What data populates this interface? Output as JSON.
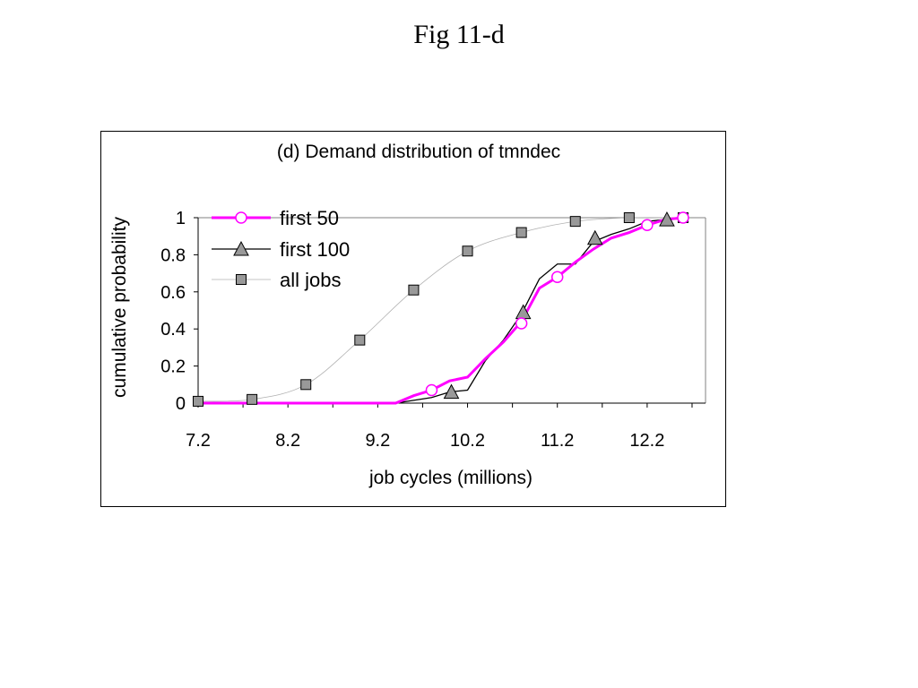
{
  "slide": {
    "title": "Fig 11-d"
  },
  "chart_data": {
    "type": "line",
    "title": "(d) Demand distribution of tmndec",
    "xlabel": "job cycles (millions)",
    "ylabel": "cumulative probability",
    "x_ticks": [
      "7.2",
      "8.2",
      "9.2",
      "10.2",
      "11.2",
      "12.2"
    ],
    "y_ticks": [
      "0",
      "0.2",
      "0.4",
      "0.6",
      "0.8",
      "1"
    ],
    "xlim": [
      7.2,
      12.85
    ],
    "ylim": [
      0,
      1
    ],
    "legend_position": "top-left",
    "series": [
      {
        "name": "first 50",
        "color": "#ff00ff",
        "marker": "circle",
        "line": [
          [
            7.2,
            0.0
          ],
          [
            9.4,
            0.0
          ],
          [
            9.6,
            0.04
          ],
          [
            9.8,
            0.07
          ],
          [
            10.0,
            0.12
          ],
          [
            10.2,
            0.14
          ],
          [
            10.4,
            0.24
          ],
          [
            10.6,
            0.33
          ],
          [
            10.8,
            0.44
          ],
          [
            11.0,
            0.62
          ],
          [
            11.2,
            0.68
          ],
          [
            11.4,
            0.76
          ],
          [
            11.6,
            0.83
          ],
          [
            11.8,
            0.89
          ],
          [
            12.0,
            0.92
          ],
          [
            12.2,
            0.96
          ],
          [
            12.4,
            0.99
          ],
          [
            12.6,
            1.0
          ]
        ],
        "markers": [
          [
            9.8,
            0.07
          ],
          [
            10.8,
            0.43
          ],
          [
            11.2,
            0.68
          ],
          [
            12.2,
            0.96
          ],
          [
            12.6,
            1.0
          ]
        ]
      },
      {
        "name": "first 100",
        "color": "#000000",
        "marker": "triangle",
        "line": [
          [
            7.2,
            0.0
          ],
          [
            9.4,
            0.0
          ],
          [
            9.8,
            0.03
          ],
          [
            10.0,
            0.06
          ],
          [
            10.2,
            0.07
          ],
          [
            10.4,
            0.23
          ],
          [
            10.6,
            0.34
          ],
          [
            10.8,
            0.48
          ],
          [
            11.0,
            0.67
          ],
          [
            11.2,
            0.75
          ],
          [
            11.4,
            0.75
          ],
          [
            11.6,
            0.87
          ],
          [
            11.8,
            0.91
          ],
          [
            12.0,
            0.94
          ],
          [
            12.2,
            0.98
          ],
          [
            12.4,
            0.99
          ],
          [
            12.6,
            1.0
          ]
        ],
        "markers": [
          [
            10.02,
            0.06
          ],
          [
            10.82,
            0.49
          ],
          [
            11.62,
            0.89
          ],
          [
            12.42,
            0.99
          ]
        ]
      },
      {
        "name": "all jobs",
        "color": "#b0b0b0",
        "marker": "square",
        "marker_fill": "#999999",
        "line": [
          [
            7.2,
            0.01
          ],
          [
            7.8,
            0.02
          ],
          [
            8.4,
            0.1
          ],
          [
            9.0,
            0.34
          ],
          [
            9.6,
            0.61
          ],
          [
            10.2,
            0.82
          ],
          [
            10.8,
            0.92
          ],
          [
            11.4,
            0.98
          ],
          [
            12.0,
            1.0
          ],
          [
            12.6,
            1.0
          ]
        ],
        "markers": [
          [
            7.2,
            0.01
          ],
          [
            7.8,
            0.02
          ],
          [
            8.4,
            0.1
          ],
          [
            9.0,
            0.34
          ],
          [
            9.6,
            0.61
          ],
          [
            10.2,
            0.82
          ],
          [
            10.8,
            0.92
          ],
          [
            11.4,
            0.98
          ],
          [
            12.0,
            1.0
          ],
          [
            12.6,
            1.0
          ]
        ]
      }
    ]
  }
}
